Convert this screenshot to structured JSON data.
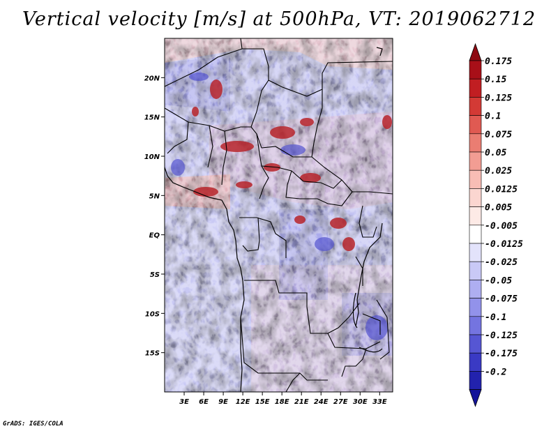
{
  "title": "Vertical velocity [m/s] at 500hPa, VT: 2019062712",
  "credit": "GrADS: IGES/COLA",
  "map": {
    "lon_range": [
      0,
      35
    ],
    "lat_range": [
      -20,
      25
    ],
    "lat_ticks": [
      {
        "value": 20,
        "label": "20N"
      },
      {
        "value": 15,
        "label": "15N"
      },
      {
        "value": 10,
        "label": "10N"
      },
      {
        "value": 5,
        "label": "5N"
      },
      {
        "value": 0,
        "label": "EQ"
      },
      {
        "value": -5,
        "label": "5S"
      },
      {
        "value": -10,
        "label": "10S"
      },
      {
        "value": -15,
        "label": "15S"
      }
    ],
    "lon_ticks": [
      {
        "value": 3,
        "label": "3E"
      },
      {
        "value": 6,
        "label": "6E"
      },
      {
        "value": 9,
        "label": "9E"
      },
      {
        "value": 12,
        "label": "12E"
      },
      {
        "value": 15,
        "label": "15E"
      },
      {
        "value": 18,
        "label": "18E"
      },
      {
        "value": 21,
        "label": "21E"
      },
      {
        "value": 24,
        "label": "24E"
      },
      {
        "value": 27,
        "label": "27E"
      },
      {
        "value": 30,
        "label": "30E"
      },
      {
        "value": 33,
        "label": "33E"
      }
    ]
  },
  "colorbar": {
    "levels": [
      {
        "label": "0.175",
        "color": "#a80f18"
      },
      {
        "label": "0.15",
        "color": "#c11e22"
      },
      {
        "label": "0.125",
        "color": "#d33a35"
      },
      {
        "label": "0.1",
        "color": "#e05a52"
      },
      {
        "label": "0.075",
        "color": "#ea7d72"
      },
      {
        "label": "0.05",
        "color": "#f29d93"
      },
      {
        "label": "0.025",
        "color": "#f8bdb5"
      },
      {
        "label": "0.0125",
        "color": "#fbd6d0"
      },
      {
        "label": "0.005",
        "color": "#fdeae6"
      },
      {
        "label": "-0.005",
        "color": "#ffffff"
      },
      {
        "label": "-0.0125",
        "color": "#e3e3fb"
      },
      {
        "label": "-0.025",
        "color": "#c9c9f6"
      },
      {
        "label": "-0.05",
        "color": "#aeaef1"
      },
      {
        "label": "-0.075",
        "color": "#9292ea"
      },
      {
        "label": "-0.1",
        "color": "#7474e0"
      },
      {
        "label": "-0.125",
        "color": "#5656d3"
      },
      {
        "label": "-0.175",
        "color": "#3a3ac4"
      },
      {
        "label": "-0.2",
        "color": "#2222ad"
      }
    ],
    "top_color": "#8e0a12",
    "bottom_color": "#14149a"
  }
}
